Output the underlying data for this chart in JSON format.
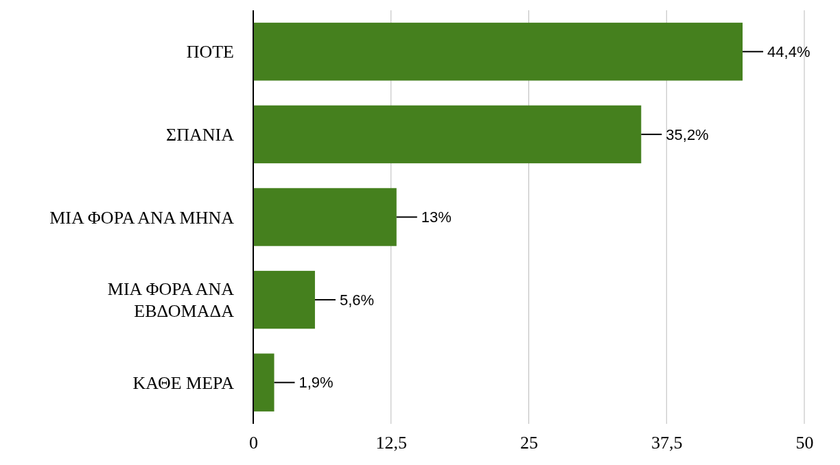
{
  "chart_data": {
    "type": "bar",
    "orientation": "horizontal",
    "categories": [
      "ΠΟΤΕ",
      "ΣΠΑΝΙΑ",
      "ΜΙΑ ΦΟΡΑ ΑΝΑ ΜΗΝΑ",
      "ΜΙΑ ΦΟΡΑ ΑΝΑ ΕΒΔΟΜΑΔΑ",
      "ΚΑΘΕ ΜΕΡΑ"
    ],
    "values": [
      44.4,
      35.2,
      13,
      5.6,
      1.9
    ],
    "value_labels": [
      "44,4%",
      "35,2%",
      "13%",
      "5,6%",
      "1,9%"
    ],
    "color": "#45801e",
    "xlim": [
      0,
      50
    ],
    "xticks": [
      0,
      {
        "value": 12.5,
        "label": "12,5"
      },
      25,
      {
        "value": 37.5,
        "label": "37,5"
      },
      50
    ],
    "grid": "x"
  }
}
